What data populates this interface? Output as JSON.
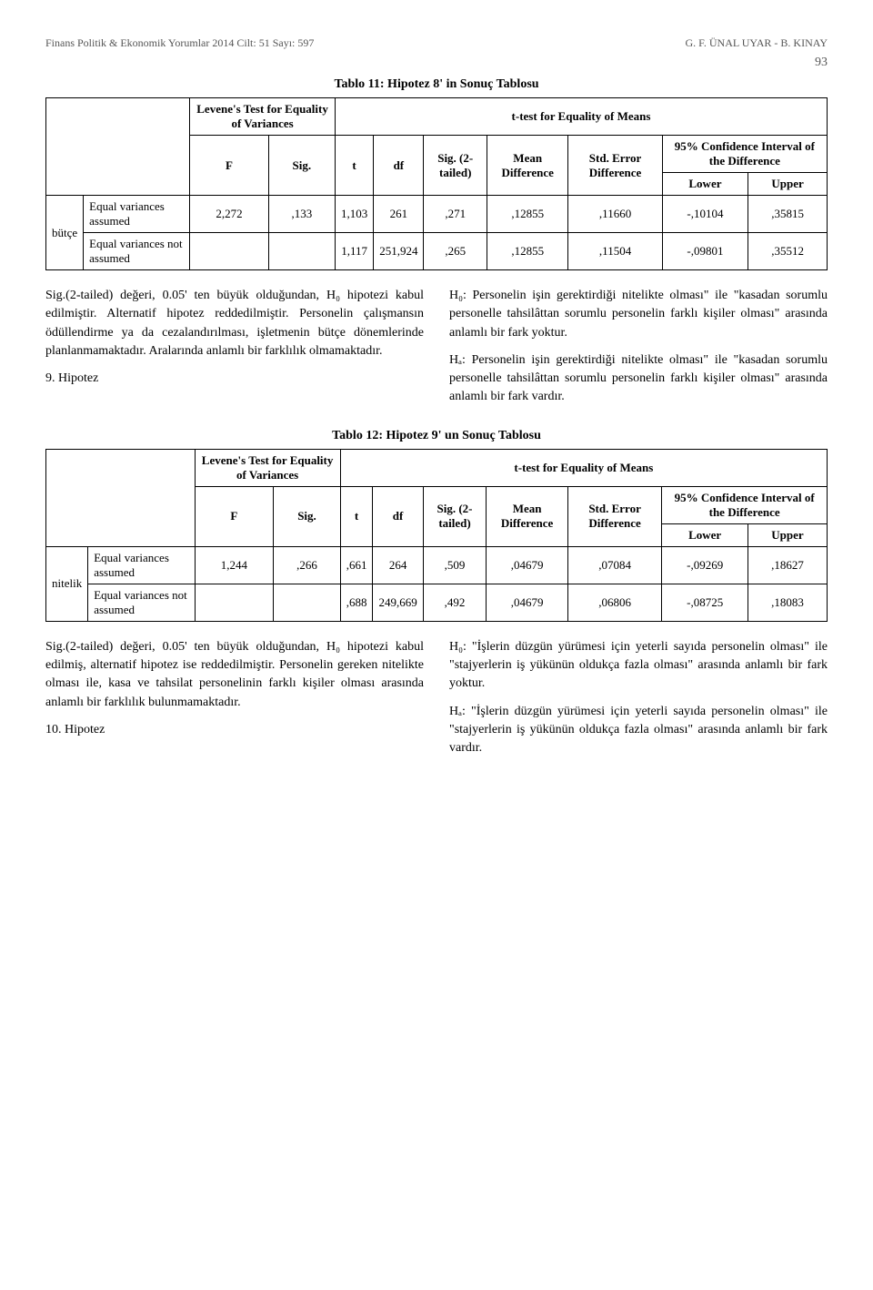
{
  "header": {
    "left": "Finans Politik & Ekonomik Yorumlar 2014 Cilt: 51 Sayı: 597",
    "right": "G. F. ÜNAL UYAR - B. KINAY",
    "page_number": "93"
  },
  "table11": {
    "title": "Tablo 11: Hipotez 8' in Sonuç Tablosu",
    "levene_header": "Levene's Test for Equality of Variances",
    "ttest_header": "t-test for Equality of Means",
    "cols": {
      "F": "F",
      "Sig": "Sig.",
      "t": "t",
      "df": "df",
      "Sig2": "Sig. (2-tailed)",
      "Mean": "Mean Difference",
      "StdErr": "Std. Error Difference",
      "CI": "95% Confidence Interval of the Difference",
      "Lower": "Lower",
      "Upper": "Upper"
    },
    "row_label": "bütçe",
    "rows": [
      {
        "label": "Equal variances assumed",
        "F": "2,272",
        "Sig": ",133",
        "t": "1,103",
        "df": "261",
        "Sig2": ",271",
        "Mean": ",12855",
        "StdErr": ",11660",
        "Lower": "-,10104",
        "Upper": ",35815"
      },
      {
        "label": "Equal variances not assumed",
        "F": "",
        "Sig": "",
        "t": "1,117",
        "df": "251,924",
        "Sig2": ",265",
        "Mean": ",12855",
        "StdErr": ",11504",
        "Lower": "-,09801",
        "Upper": ",35512"
      }
    ]
  },
  "text_block1": {
    "left": [
      "Sig.(2-tailed) değeri, 0.05' ten büyük olduğundan, H₀ hipotezi kabul edilmiştir. Alternatif hipotez reddedilmiştir. Personelin çalışmansın ödüllendirme ya da cezalandırılması, işletmenin bütçe dönemlerinde planlanmamaktadır. Aralarında anlamlı bir farklılık olmamaktadır.",
      "9. Hipotez"
    ],
    "right": [
      "H₀: Personelin işin gerektirdiği nitelikte olması\" ile \"kasadan sorumlu personelle tahsilâttan sorumlu personelin farklı kişiler olması\" arasında anlamlı bir fark yoktur.",
      "Hₐ: Personelin işin gerektirdiği nitelikte olması\" ile \"kasadan sorumlu personelle tahsilâttan sorumlu personelin farklı kişiler olması\" arasında anlamlı bir fark vardır."
    ]
  },
  "table12": {
    "title": "Tablo 12: Hipotez 9' un Sonuç Tablosu",
    "levene_header": "Levene's Test for Equality of Variances",
    "ttest_header": "t-test for Equality of Means",
    "cols": {
      "F": "F",
      "Sig": "Sig.",
      "t": "t",
      "df": "df",
      "Sig2": "Sig. (2-tailed)",
      "Mean": "Mean Difference",
      "StdErr": "Std. Error Difference",
      "CI": "95% Confidence Interval of the Difference",
      "Lower": "Lower",
      "Upper": "Upper"
    },
    "row_label": "nitelik",
    "rows": [
      {
        "label": "Equal variances assumed",
        "F": "1,244",
        "Sig": ",266",
        "t": ",661",
        "df": "264",
        "Sig2": ",509",
        "Mean": ",04679",
        "StdErr": ",07084",
        "Lower": "-,09269",
        "Upper": ",18627"
      },
      {
        "label": "Equal variances not assumed",
        "F": "",
        "Sig": "",
        "t": ",688",
        "df": "249,669",
        "Sig2": ",492",
        "Mean": ",04679",
        "StdErr": ",06806",
        "Lower": "-,08725",
        "Upper": ",18083"
      }
    ]
  },
  "text_block2": {
    "left": [
      "Sig.(2-tailed) değeri, 0.05' ten büyük olduğundan, H₀ hipotezi kabul edilmiş, alternatif hipotez ise reddedilmiştir. Personelin gereken nitelikte olması ile, kasa ve tahsilat personelinin farklı kişiler olması arasında anlamlı bir farklılık bulunmamaktadır.",
      "10. Hipotez"
    ],
    "right": [
      "H₀: \"İşlerin düzgün yürümesi için yeterli sayıda personelin olması\" ile \"stajyerlerin iş yükünün oldukça fazla olması\" arasında anlamlı bir fark yoktur.",
      "Hₐ: \"İşlerin düzgün yürümesi için yeterli sayıda personelin olması\" ile \"stajyerlerin iş yükünün oldukça fazla olması\" arasında anlamlı bir fark vardır."
    ]
  }
}
